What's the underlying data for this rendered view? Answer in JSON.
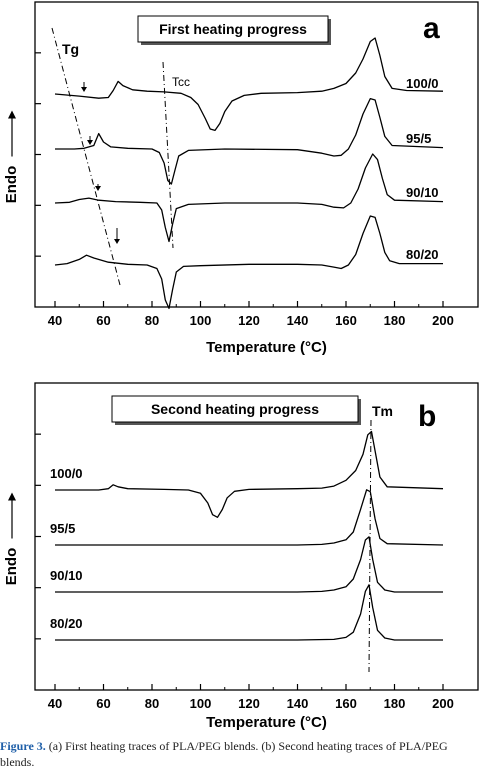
{
  "chart_data": [
    {
      "type": "line",
      "panel_letter": "a",
      "title": "First heating progress",
      "xlabel": "Temperature (",
      "xlabel_unit": "°C",
      "xlabel_close": ")",
      "ylabel": "Endo",
      "xlim": [
        40,
        200
      ],
      "xticks": [
        "40",
        "60",
        "80",
        "100",
        "120",
        "140",
        "160",
        "180",
        "200"
      ],
      "annotations": {
        "tg": "Tg",
        "tcc": "Tcc"
      },
      "series": [
        {
          "name": "80/20",
          "offset": 3,
          "points": [
            [
              40,
              0
            ],
            [
              45,
              0.02
            ],
            [
              50,
              0.08
            ],
            [
              53,
              0.14
            ],
            [
              56,
              0.1
            ],
            [
              62,
              0.04
            ],
            [
              70,
              0.01
            ],
            [
              78,
              0
            ],
            [
              82,
              -0.05
            ],
            [
              84,
              -0.2
            ],
            [
              85.5,
              -0.5
            ],
            [
              87,
              -0.62
            ],
            [
              88.5,
              -0.35
            ],
            [
              90,
              -0.1
            ],
            [
              93,
              -0.02
            ],
            [
              100,
              -0.01
            ],
            [
              120,
              0.01
            ],
            [
              140,
              0.01
            ],
            [
              150,
              0
            ],
            [
              155,
              -0.03
            ],
            [
              158,
              -0.05
            ],
            [
              161,
              0
            ],
            [
              164,
              0.15
            ],
            [
              167,
              0.45
            ],
            [
              170,
              0.7
            ],
            [
              172,
              0.68
            ],
            [
              174,
              0.45
            ],
            [
              176,
              0.18
            ],
            [
              178,
              0.06
            ],
            [
              182,
              0.02
            ],
            [
              200,
              0.02
            ]
          ]
        },
        {
          "name": "90/10",
          "offset": 2,
          "points": [
            [
              40,
              0
            ],
            [
              46,
              0.01
            ],
            [
              50,
              0.05
            ],
            [
              54,
              0.07
            ],
            [
              58,
              0.04
            ],
            [
              65,
              0.02
            ],
            [
              75,
              0.01
            ],
            [
              82,
              0
            ],
            [
              84,
              -0.1
            ],
            [
              85.5,
              -0.35
            ],
            [
              87,
              -0.55
            ],
            [
              88.5,
              -0.3
            ],
            [
              90,
              -0.08
            ],
            [
              95,
              -0.02
            ],
            [
              110,
              0
            ],
            [
              140,
              0
            ],
            [
              150,
              -0.02
            ],
            [
              155,
              -0.06
            ],
            [
              159,
              -0.07
            ],
            [
              162,
              0
            ],
            [
              165,
              0.2
            ],
            [
              168,
              0.5
            ],
            [
              171,
              0.7
            ],
            [
              173,
              0.62
            ],
            [
              175,
              0.35
            ],
            [
              177,
              0.12
            ],
            [
              180,
              0.04
            ],
            [
              200,
              0.02
            ]
          ]
        },
        {
          "name": "95/5",
          "offset": 1,
          "points": [
            [
              40,
              0
            ],
            [
              48,
              0
            ],
            [
              52,
              0.01
            ],
            [
              56,
              0.05
            ],
            [
              58,
              0.22
            ],
            [
              60,
              0.1
            ],
            [
              63,
              0.03
            ],
            [
              70,
              0.01
            ],
            [
              80,
              0
            ],
            [
              83,
              -0.05
            ],
            [
              85,
              -0.2
            ],
            [
              86.5,
              -0.45
            ],
            [
              88,
              -0.5
            ],
            [
              89.5,
              -0.3
            ],
            [
              91,
              -0.1
            ],
            [
              95,
              -0.02
            ],
            [
              110,
              0
            ],
            [
              140,
              -0.01
            ],
            [
              150,
              -0.06
            ],
            [
              155,
              -0.1
            ],
            [
              158,
              -0.09
            ],
            [
              161,
              0
            ],
            [
              164,
              0.2
            ],
            [
              167,
              0.5
            ],
            [
              170,
              0.72
            ],
            [
              172,
              0.7
            ],
            [
              174,
              0.45
            ],
            [
              176,
              0.18
            ],
            [
              179,
              0.05
            ],
            [
              200,
              0.02
            ]
          ]
        },
        {
          "name": "100/0",
          "offset": 0,
          "points": [
            [
              40,
              0
            ],
            [
              50,
              -0.03
            ],
            [
              58,
              -0.06
            ],
            [
              62,
              -0.05
            ],
            [
              64,
              0.05
            ],
            [
              66,
              0.18
            ],
            [
              68,
              0.12
            ],
            [
              72,
              0.06
            ],
            [
              78,
              0.04
            ],
            [
              85,
              0.03
            ],
            [
              92,
              0.01
            ],
            [
              96,
              -0.05
            ],
            [
              99,
              -0.15
            ],
            [
              102,
              -0.35
            ],
            [
              104,
              -0.5
            ],
            [
              106,
              -0.52
            ],
            [
              108,
              -0.42
            ],
            [
              110,
              -0.25
            ],
            [
              113,
              -0.1
            ],
            [
              118,
              -0.02
            ],
            [
              125,
              0.01
            ],
            [
              140,
              0.02
            ],
            [
              150,
              0.04
            ],
            [
              155,
              0.08
            ],
            [
              160,
              0.15
            ],
            [
              164,
              0.3
            ],
            [
              167,
              0.5
            ],
            [
              170,
              0.75
            ],
            [
              172,
              0.8
            ],
            [
              174,
              0.55
            ],
            [
              176,
              0.25
            ],
            [
              179,
              0.08
            ],
            [
              185,
              0.05
            ],
            [
              200,
              0.04
            ]
          ]
        }
      ]
    },
    {
      "type": "line",
      "panel_letter": "b",
      "title": "Second heating progress",
      "xlabel": "Temperature (",
      "xlabel_unit": "°C",
      "xlabel_close": ")",
      "ylabel": "Endo",
      "xlim": [
        40,
        200
      ],
      "xticks": [
        "40",
        "60",
        "80",
        "100",
        "120",
        "140",
        "160",
        "180",
        "200"
      ],
      "annotations": {
        "tm": "Tm"
      },
      "series": [
        {
          "name": "80/20",
          "offset": 3,
          "points": [
            [
              40,
              0
            ],
            [
              100,
              0
            ],
            [
              140,
              0
            ],
            [
              155,
              0.01
            ],
            [
              160,
              0.04
            ],
            [
              163,
              0.12
            ],
            [
              166,
              0.4
            ],
            [
              168,
              0.75
            ],
            [
              169.5,
              0.85
            ],
            [
              171,
              0.5
            ],
            [
              173,
              0.15
            ],
            [
              176,
              0.03
            ],
            [
              180,
              0
            ],
            [
              200,
              0
            ]
          ]
        },
        {
          "name": "90/10",
          "offset": 2,
          "points": [
            [
              40,
              0
            ],
            [
              100,
              0
            ],
            [
              140,
              0
            ],
            [
              150,
              0.01
            ],
            [
              155,
              0.03
            ],
            [
              160,
              0.08
            ],
            [
              163,
              0.2
            ],
            [
              166,
              0.5
            ],
            [
              168,
              0.8
            ],
            [
              169.5,
              0.85
            ],
            [
              171,
              0.5
            ],
            [
              173,
              0.15
            ],
            [
              176,
              0.03
            ],
            [
              180,
              0
            ],
            [
              200,
              0
            ]
          ]
        },
        {
          "name": "95/5",
          "offset": 1,
          "points": [
            [
              40,
              0
            ],
            [
              100,
              0
            ],
            [
              140,
              0
            ],
            [
              150,
              0.01
            ],
            [
              155,
              0.03
            ],
            [
              160,
              0.08
            ],
            [
              163,
              0.2
            ],
            [
              166,
              0.55
            ],
            [
              168.5,
              0.85
            ],
            [
              170,
              0.82
            ],
            [
              172,
              0.4
            ],
            [
              174,
              0.1
            ],
            [
              177,
              0.02
            ],
            [
              200,
              0
            ]
          ]
        },
        {
          "name": "100/0",
          "offset": 0,
          "points": [
            [
              40,
              0
            ],
            [
              58,
              0
            ],
            [
              62,
              0.02
            ],
            [
              64,
              0.08
            ],
            [
              66,
              0.05
            ],
            [
              70,
              0.02
            ],
            [
              85,
              0.01
            ],
            [
              95,
              0
            ],
            [
              100,
              -0.05
            ],
            [
              103,
              -0.2
            ],
            [
              105,
              -0.38
            ],
            [
              107,
              -0.42
            ],
            [
              109,
              -0.3
            ],
            [
              111,
              -0.12
            ],
            [
              114,
              -0.02
            ],
            [
              120,
              0.01
            ],
            [
              140,
              0.02
            ],
            [
              150,
              0.03
            ],
            [
              155,
              0.06
            ],
            [
              160,
              0.15
            ],
            [
              164,
              0.3
            ],
            [
              167,
              0.55
            ],
            [
              169,
              0.85
            ],
            [
              170.5,
              0.9
            ],
            [
              172,
              0.6
            ],
            [
              174,
              0.2
            ],
            [
              177,
              0.05
            ],
            [
              200,
              0.02
            ]
          ]
        }
      ]
    }
  ],
  "caption": {
    "label": "Figure 3.",
    "text": " (a) First heating traces of PLA/PEG blends. (b) Second heating traces of PLA/PEG blends."
  }
}
